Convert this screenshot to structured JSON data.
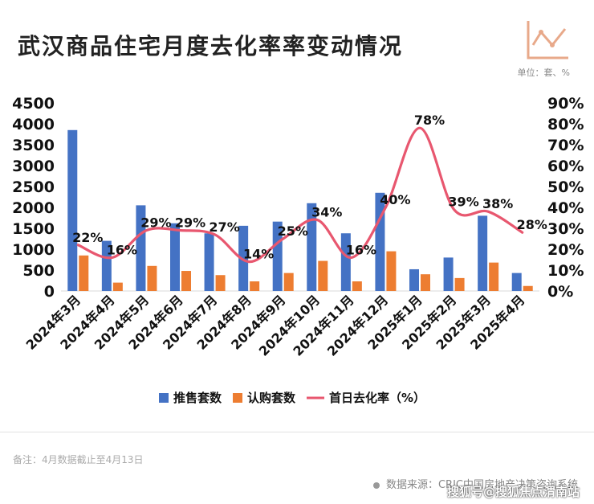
{
  "header": {
    "title": "武汉商品住宅月度去化率率变动情况",
    "unit": "单位：套、%"
  },
  "footer": {
    "note": "备注：4月数据截止至4月13日",
    "source": "数据来源：CRIC中国房地产决策咨询系统",
    "watermark": "搜狐号@搜狐焦点渭南站"
  },
  "colors": {
    "supply": "#4472C4",
    "subscribe": "#ED7D31",
    "rate": "#E8576F"
  },
  "chart_data": {
    "type": "bar",
    "categories": [
      "2024年3月",
      "2024年4月",
      "2024年5月",
      "2024年6月",
      "2024年7月",
      "2024年8月",
      "2024年9月",
      "2024年10月",
      "2024年11月",
      "2024年12月",
      "2025年1月",
      "2025年2月",
      "2025年3月",
      "2025年4月"
    ],
    "series": [
      {
        "name": "推售套数",
        "type": "bar",
        "axis": "left",
        "values": [
          3850,
          1200,
          2050,
          1620,
          1380,
          1560,
          1660,
          2100,
          1380,
          2350,
          520,
          800,
          1800,
          430
        ]
      },
      {
        "name": "认购套数",
        "type": "bar",
        "axis": "left",
        "values": [
          850,
          200,
          600,
          480,
          380,
          230,
          430,
          720,
          230,
          950,
          400,
          310,
          680,
          120
        ]
      },
      {
        "name": "首日去化率（%）",
        "type": "line",
        "axis": "right",
        "values": [
          22,
          16,
          29,
          29,
          27,
          14,
          25,
          34,
          16,
          40,
          78,
          39,
          38,
          28
        ]
      }
    ],
    "data_labels": [
      "22%",
      "16%",
      "29%",
      "29%",
      "27%",
      "14%",
      "25%",
      "34%",
      "16%",
      "40%",
      "78%",
      "39%",
      "38%",
      "28%"
    ],
    "ylim_left": [
      0,
      4500
    ],
    "yticks_left": [
      "0",
      "500",
      "1000",
      "1500",
      "2000",
      "2500",
      "3000",
      "3500",
      "4000",
      "4500"
    ],
    "ylim_right": [
      0,
      90
    ],
    "yticks_right": [
      "0%",
      "10%",
      "20%",
      "30%",
      "40%",
      "50%",
      "60%",
      "70%",
      "80%",
      "90%"
    ],
    "legend_position": "bottom",
    "grid": false
  }
}
